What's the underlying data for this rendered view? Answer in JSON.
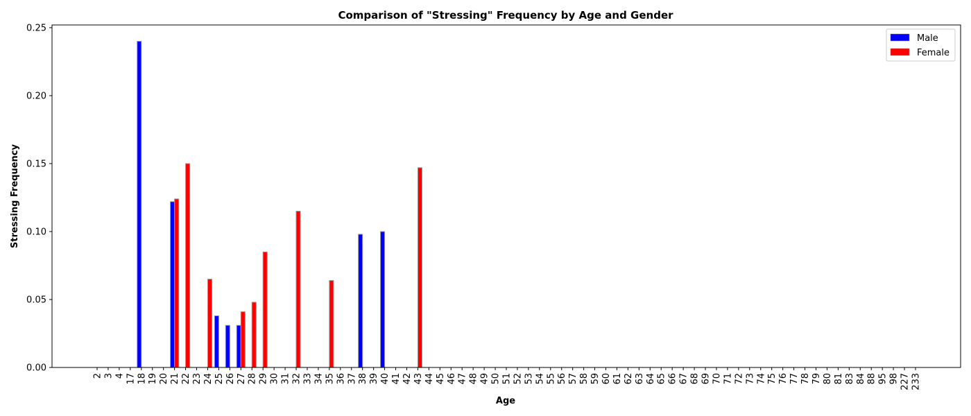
{
  "chart_data": {
    "type": "bar",
    "title": "Comparison of \"Stressing\" Frequency by Age and Gender",
    "xlabel": "Age",
    "ylabel": "Stressing Frequency",
    "ylim": [
      0,
      0.252
    ],
    "yticks": [
      "0.00",
      "0.05",
      "0.10",
      "0.15",
      "0.20",
      "0.25"
    ],
    "ytick_values": [
      0,
      0.05,
      0.1,
      0.15,
      0.2,
      0.25
    ],
    "categories": [
      "2",
      "3",
      "4",
      "17",
      "18",
      "19",
      "20",
      "21",
      "22",
      "23",
      "24",
      "25",
      "26",
      "27",
      "28",
      "29",
      "30",
      "31",
      "32",
      "33",
      "34",
      "35",
      "36",
      "37",
      "38",
      "39",
      "40",
      "41",
      "42",
      "43",
      "44",
      "45",
      "46",
      "47",
      "48",
      "49",
      "50",
      "51",
      "52",
      "53",
      "54",
      "55",
      "56",
      "57",
      "58",
      "59",
      "60",
      "61",
      "62",
      "63",
      "64",
      "65",
      "66",
      "67",
      "68",
      "69",
      "70",
      "71",
      "72",
      "73",
      "74",
      "75",
      "76",
      "77",
      "78",
      "79",
      "80",
      "81",
      "83",
      "84",
      "88",
      "95",
      "98",
      "227",
      "233"
    ],
    "series": [
      {
        "name": "Male",
        "color": "#0000ff",
        "values": {
          "18": 0.24,
          "21": 0.122,
          "25": 0.038,
          "26": 0.031,
          "27": 0.031,
          "38": 0.098,
          "40": 0.1
        }
      },
      {
        "name": "Female",
        "color": "#ff0000",
        "values": {
          "21": 0.124,
          "22": 0.15,
          "24": 0.065,
          "27": 0.041,
          "28": 0.048,
          "29": 0.085,
          "32": 0.115,
          "35": 0.064,
          "43": 0.147
        }
      }
    ],
    "legend_position": "top-right",
    "grid": false
  }
}
